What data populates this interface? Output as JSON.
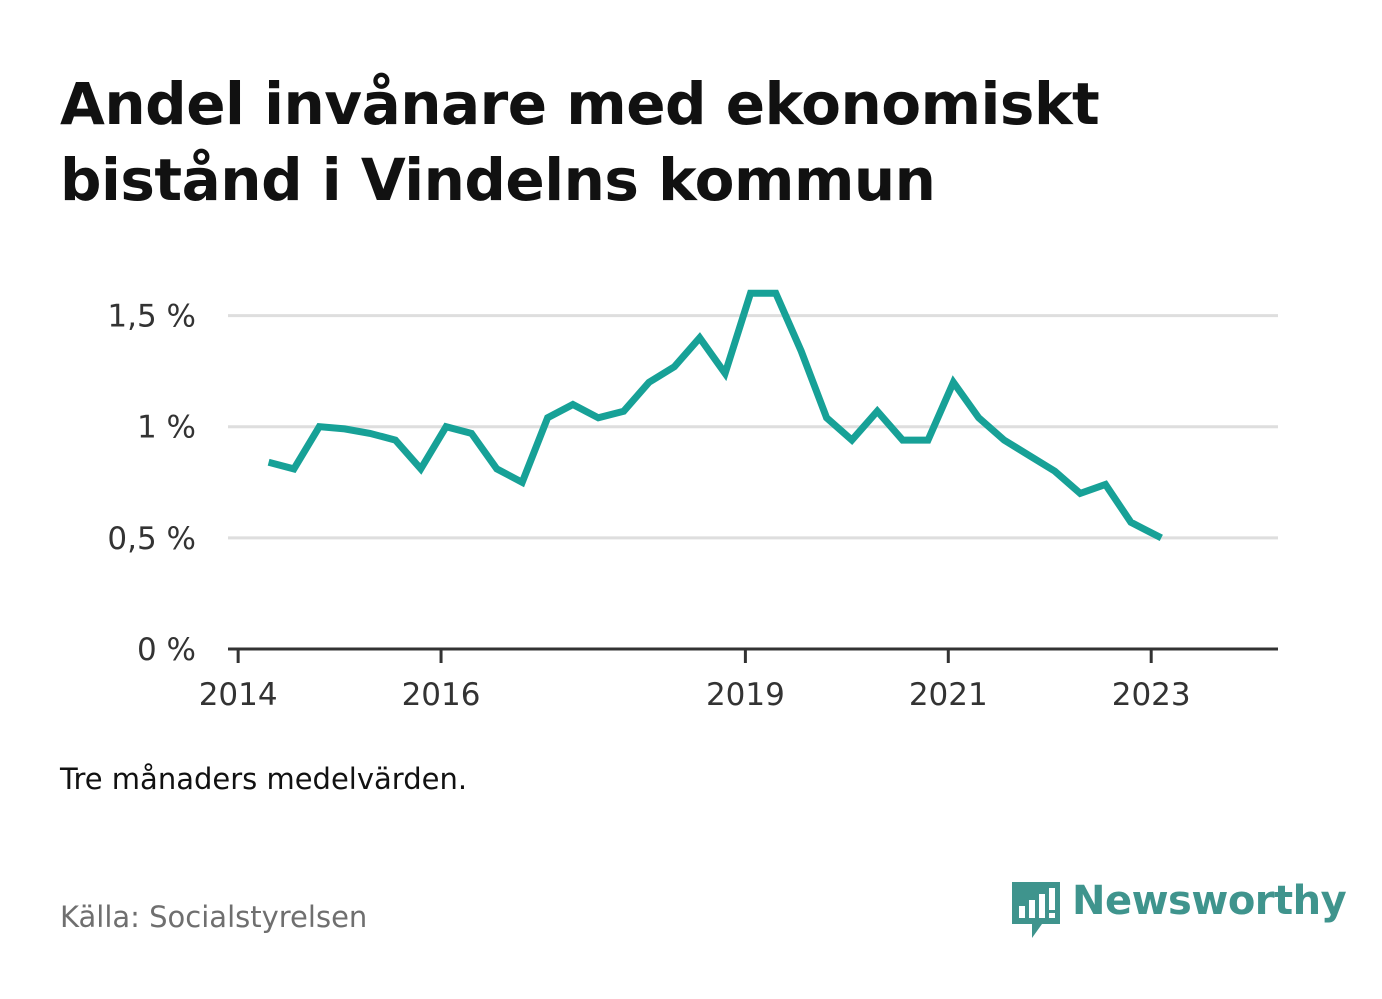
{
  "header": {
    "title_line1": "Andel invånare med ekonomiskt",
    "title_line2": "bistånd i Vindelns kommun"
  },
  "footer": {
    "note": "Tre månaders medelvärden.",
    "source": "Källa: Socialstyrelsen",
    "brand": "Newsworthy",
    "brand_icon": "bar-chart-speech-bubble-icon"
  },
  "colors": {
    "line": "#17a197",
    "grid": "#dedede",
    "axis": "#333333",
    "brand": "#3f948d"
  },
  "chart_data": {
    "type": "line",
    "title": "Andel invånare med ekonomiskt bistånd i Vindelns kommun",
    "xlabel": "",
    "ylabel": "",
    "x_ticks": [
      {
        "label": "2014",
        "value": 2014.0
      },
      {
        "label": "2016",
        "value": 2016.0
      },
      {
        "label": "2019",
        "value": 2019.0
      },
      {
        "label": "2021",
        "value": 2021.0
      },
      {
        "label": "2023",
        "value": 2023.0
      }
    ],
    "y_ticks": [
      {
        "label": "0 %",
        "value": 0
      },
      {
        "label": "0,5 %",
        "value": 0.5
      },
      {
        "label": "1 %",
        "value": 1.0
      },
      {
        "label": "1,5 %",
        "value": 1.5
      }
    ],
    "xlim": [
      2013.9,
      2024.25
    ],
    "ylim": [
      0,
      1.75
    ],
    "grid": "horizontal",
    "legend": "none",
    "series": [
      {
        "x": [
          2014.3,
          2014.55,
          2014.8,
          2015.05,
          2015.3,
          2015.55,
          2015.8,
          2016.05,
          2016.3,
          2016.55,
          2016.8,
          2017.05,
          2017.3,
          2017.55,
          2017.8,
          2018.05,
          2018.3,
          2018.55,
          2018.8,
          2019.05,
          2019.3,
          2019.55,
          2019.8,
          2020.05,
          2020.3,
          2020.55,
          2020.8,
          2021.05,
          2021.3,
          2021.55,
          2021.8,
          2022.05,
          2022.3,
          2022.55,
          2022.8,
          2023.1
        ],
        "values": [
          0.84,
          0.81,
          1.0,
          0.99,
          0.97,
          0.94,
          0.81,
          1.0,
          0.97,
          0.81,
          0.75,
          1.04,
          1.1,
          1.04,
          1.07,
          1.2,
          1.27,
          1.4,
          1.24,
          1.6,
          1.6,
          1.34,
          1.04,
          0.94,
          1.07,
          0.94,
          0.94,
          1.2,
          1.04,
          0.94,
          0.87,
          0.8,
          0.7,
          0.74,
          0.57,
          0.5
        ]
      }
    ]
  }
}
